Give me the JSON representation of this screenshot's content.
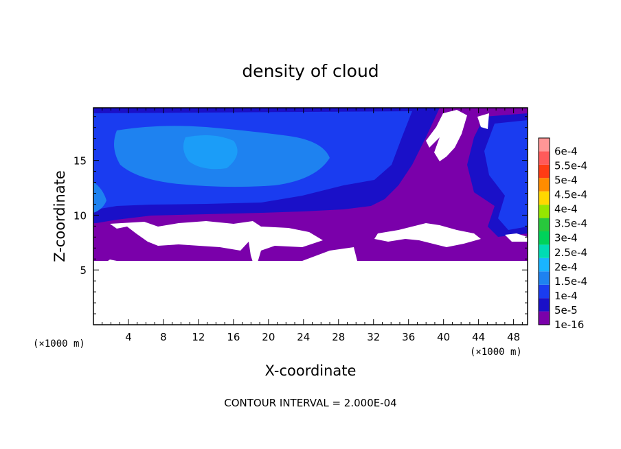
{
  "chart_data": {
    "type": "heatmap",
    "title": "density of cloud",
    "xlabel": "X-coordinate",
    "ylabel": "Z-coordinate",
    "x_unit": "(×1000 m)",
    "y_unit": "(×1000 m)",
    "xlim": [
      0,
      49.6
    ],
    "ylim": [
      0,
      19.8
    ],
    "x_ticks": [
      4,
      8,
      12,
      16,
      20,
      24,
      28,
      32,
      36,
      40,
      44,
      48
    ],
    "y_ticks": [
      5,
      10,
      15
    ],
    "colorbar": {
      "levels": [
        "1e-16",
        "5e-5",
        "1e-4",
        "1.5e-4",
        "2e-4",
        "2.5e-4",
        "3e-4",
        "3.5e-4",
        "4e-4",
        "4.5e-4",
        "5e-4",
        "5.5e-4",
        "6e-4"
      ],
      "colors": [
        "#7a00aa",
        "#1a10c8",
        "#1a3cf0",
        "#1e82f0",
        "#19b4ff",
        "#00dcb4",
        "#00d25a",
        "#28c83c",
        "#96e600",
        "#ffd700",
        "#ff8c00",
        "#ff3c14",
        "#ff5a5a",
        "#ff9696"
      ]
    },
    "footnote": "CONTOUR INTERVAL = 2.000E-04"
  }
}
